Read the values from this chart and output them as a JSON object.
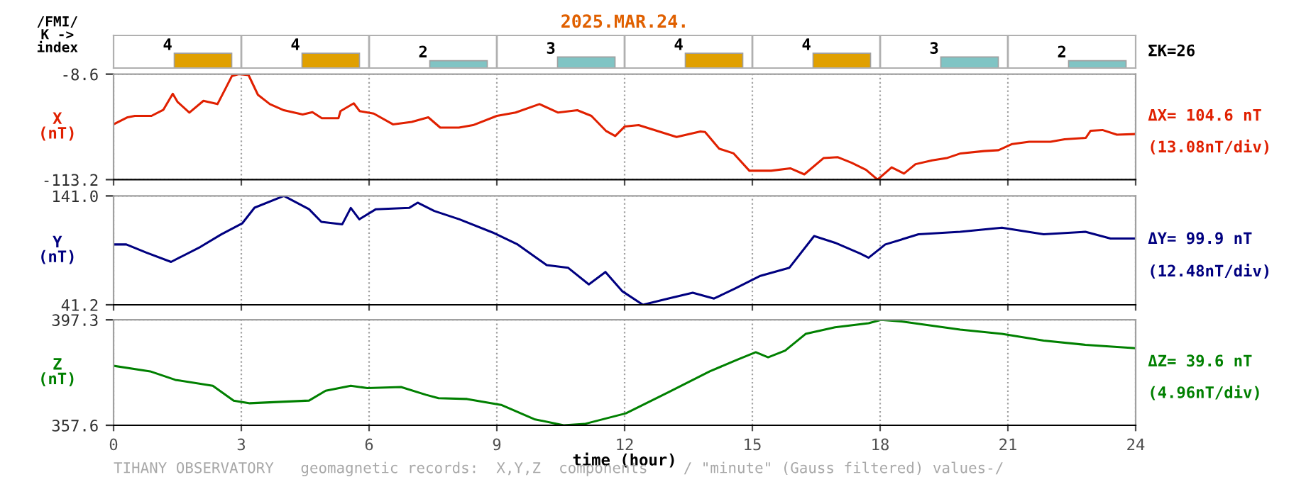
{
  "chart_data": [
    {
      "type": "bar",
      "title": "2025.MAR.24.",
      "ylabel": "/FMI/\nK ->\nindex",
      "categories": [
        null,
        null,
        null,
        null,
        null,
        null,
        null,
        null
      ],
      "values": [
        4,
        4,
        2,
        3,
        4,
        4,
        3,
        2
      ],
      "colors": [
        "#e0a000",
        "#e0a000",
        "#80c4c4",
        "#80c4c4",
        "#e0a000",
        "#e0a000",
        "#80c4c4",
        "#80c4c4"
      ],
      "data_labels": true,
      "tick_labels": false,
      "annotations": [
        "ΣK=26"
      ]
    },
    {
      "type": "line",
      "ylabel": "X\n(nT)",
      "xlim": [
        0,
        24
      ],
      "ylim": [
        -113.2,
        -8.6
      ],
      "xticks": [
        0,
        3,
        6,
        9,
        12,
        15,
        18,
        21,
        24
      ],
      "yticks": [
        {
          "value": -8.6,
          "label": "-8.6"
        },
        {
          "value": -113.2,
          "label": "-113.2"
        }
      ],
      "grid": true,
      "tick_labels": "y",
      "series": [
        {
          "color": "#e02000",
          "x": [
            0,
            0.33,
            0.5,
            0.89,
            1.17,
            1.39,
            1.5,
            1.78,
            2.11,
            2.44,
            2.61,
            2.78,
            2.94,
            3.17,
            3.39,
            3.67,
            4,
            4.44,
            4.67,
            4.89,
            5.28,
            5.33,
            5.64,
            5.78,
            6.11,
            6.56,
            7,
            7.39,
            7.67,
            8.11,
            8.44,
            9,
            9.44,
            10,
            10.44,
            10.89,
            11.22,
            11.56,
            11.78,
            12,
            12.33,
            13.22,
            13.78,
            13.89,
            14.22,
            14.56,
            14.93,
            15.44,
            15.89,
            16.22,
            16.67,
            17,
            17.33,
            17.67,
            17.94,
            18.27,
            18.56,
            18.83,
            19.22,
            19.56,
            19.89,
            20.44,
            20.78,
            21.1,
            21.5,
            22,
            22.33,
            22.83,
            22.94,
            23.22,
            23.56,
            24
          ],
          "values": [
            -58.4,
            -51.4,
            -50,
            -50,
            -43.9,
            -28.1,
            -36,
            -46.7,
            -35.1,
            -38.3,
            -24.4,
            -10.4,
            -8.6,
            -9.6,
            -29.1,
            -38.3,
            -44.4,
            -48.6,
            -46.3,
            -52.3,
            -52.3,
            -45.3,
            -37.5,
            -45.3,
            -47.7,
            -58.4,
            -56,
            -51.4,
            -61.6,
            -61.6,
            -59.2,
            -50,
            -46.7,
            -38.3,
            -46.7,
            -44.4,
            -50,
            -64.8,
            -70,
            -60.6,
            -59.2,
            -70.9,
            -65.4,
            -66,
            -82.5,
            -87.2,
            -104.4,
            -104.4,
            -102,
            -108,
            -91.9,
            -90.9,
            -96.5,
            -103.5,
            -113.2,
            -101,
            -107.2,
            -97.9,
            -94.1,
            -91.9,
            -87.2,
            -84.9,
            -84,
            -77.9,
            -75.6,
            -75.6,
            -73.2,
            -71.8,
            -64.8,
            -64,
            -68.6,
            -68
          ]
        }
      ],
      "annotations": [
        "ΔX= 104.6 nT",
        "(13.08nT/div)"
      ]
    },
    {
      "type": "line",
      "ylabel": "Y\n(nT)",
      "xlim": [
        0,
        24
      ],
      "ylim": [
        41.2,
        141.0
      ],
      "xticks": [
        0,
        3,
        6,
        9,
        12,
        15,
        18,
        21,
        24
      ],
      "yticks": [
        {
          "value": 141.0,
          "label": "141.0"
        },
        {
          "value": 41.2,
          "label": "41.2"
        }
      ],
      "grid": true,
      "tick_labels": "y",
      "series": [
        {
          "color": "#000080",
          "x": [
            0,
            0.3,
            0.77,
            1.35,
            2.04,
            2.53,
            3.02,
            3.31,
            4,
            4.59,
            4.88,
            5.37,
            5.57,
            5.77,
            6.16,
            6.94,
            7.14,
            7.53,
            8.12,
            8.9,
            9.49,
            10.17,
            10.67,
            11.16,
            11.55,
            11.94,
            12.43,
            13.02,
            13.6,
            14.1,
            14.59,
            15.17,
            15.87,
            16.45,
            16.94,
            17.53,
            17.73,
            18.12,
            18.9,
            19.88,
            20.86,
            21.84,
            22.82,
            23.41,
            24
          ],
          "values": [
            96.5,
            96.5,
            89,
            80.5,
            94.3,
            105.8,
            115.8,
            130.2,
            141.0,
            128.8,
            117.2,
            115,
            130,
            119.6,
            128.8,
            130,
            134.8,
            127.2,
            119.6,
            107.5,
            96.5,
            77.6,
            75.2,
            59.9,
            71.3,
            53.8,
            41.2,
            46.9,
            52.2,
            46.9,
            56.1,
            67.5,
            75.2,
            104.2,
            98.1,
            88.2,
            84.3,
            96.5,
            105.8,
            108.1,
            111.9,
            105.8,
            108.1,
            102,
            102
          ]
        }
      ],
      "annotations": [
        "ΔY= 99.9 nT",
        "(12.48nT/div)"
      ]
    },
    {
      "type": "line",
      "ylabel": "Z\n(nT)",
      "xlabel": "time (hour)",
      "xlim": [
        0,
        24
      ],
      "ylim": [
        357.6,
        397.3
      ],
      "xticks": [
        0,
        3,
        6,
        9,
        12,
        15,
        18,
        21,
        24
      ],
      "yticks": [
        {
          "value": 397.3,
          "label": "397.3"
        },
        {
          "value": 357.6,
          "label": "357.6"
        }
      ],
      "grid": true,
      "series": [
        {
          "color": "#008000",
          "x": [
            0,
            0.86,
            1.45,
            2.33,
            2.82,
            3.2,
            4.59,
            4.98,
            5.57,
            5.96,
            6.75,
            7.33,
            7.63,
            8.3,
            9.1,
            9.88,
            10.57,
            11.06,
            12.03,
            13.02,
            14,
            14.69,
            15.08,
            15.37,
            15.77,
            16.25,
            16.94,
            17.73,
            18.02,
            18.5,
            19.88,
            20.86,
            21.84,
            22.82,
            24
          ],
          "values": [
            380,
            377.9,
            374.7,
            372.5,
            366.9,
            365.9,
            366.9,
            370.6,
            372.5,
            371.6,
            372,
            369.1,
            367.8,
            367.5,
            365.3,
            359.9,
            357.6,
            358.1,
            362.1,
            370,
            377.9,
            382.6,
            385.1,
            383.2,
            385.7,
            392,
            394.5,
            396,
            397.3,
            396.7,
            393.6,
            392,
            389.5,
            387.9,
            386.6
          ]
        }
      ],
      "annotations": [
        "ΔZ= 39.6 nT",
        "(4.96nT/div)",
        "TIHANY OBSERVATORY   geomagnetic records:  X,Y,Z  components    / \"minute\" (Gauss filtered) values-/"
      ]
    }
  ]
}
